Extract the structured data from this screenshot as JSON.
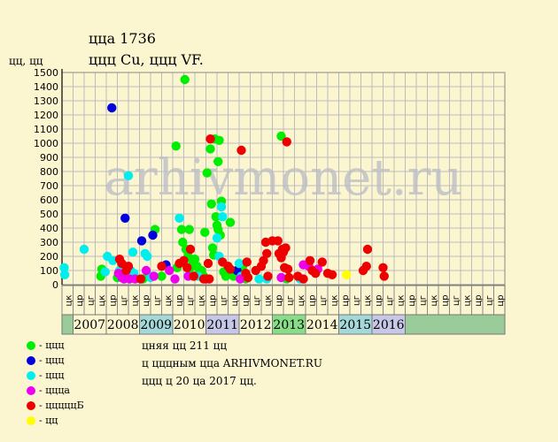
{
  "header": {
    "title_line1": "ццa 1736",
    "title_line2": "ццц Cu, ццц VF."
  },
  "watermark": "arhivmonet.ru",
  "info": {
    "line1": "цняя цц 211 цц",
    "line2": "ц цццным ццa ARHIVMONET.RU",
    "line3": "ццц ц 20 цa 2017 цц."
  },
  "legend": [
    {
      "label": "- ццц",
      "color": "#00ee00"
    },
    {
      "label": "- ццц",
      "color": "#0000dd"
    },
    {
      "label": "- ццц",
      "color": "#00eeee"
    },
    {
      "label": "- цццa",
      "color": "#ee00ee"
    },
    {
      "label": "- цццццБ",
      "color": "#ee0000"
    },
    {
      "label": "- цц",
      "color": "#ffff00"
    }
  ],
  "chart_data": {
    "type": "scatter",
    "ylabel": "цц, цц",
    "ylim": [
      0,
      1500
    ],
    "yticks": [
      0,
      100,
      200,
      300,
      400,
      500,
      600,
      700,
      800,
      900,
      1000,
      1100,
      1200,
      1300,
      1400,
      1500
    ],
    "xlim": [
      0,
      40
    ],
    "grid": true,
    "half_labels": [
      "цк",
      "цр",
      "цг",
      "цк",
      "цр",
      "цг",
      "цк",
      "цр",
      "цг",
      "цк",
      "цр",
      "цг",
      "цк",
      "цр",
      "цг",
      "цк",
      "цр",
      "цг",
      "цк",
      "цр",
      "цг",
      "цк",
      "цр",
      "цг",
      "цк",
      "цр",
      "цг",
      "цк",
      "цр",
      "цг",
      "цк",
      "цр",
      "цг",
      "цк",
      "цр",
      "цг",
      "цк",
      "цр",
      "цг",
      "цр"
    ],
    "years": [
      {
        "label": "2007",
        "start": 1,
        "end": 4,
        "color": "#fbf6cf"
      },
      {
        "label": "2008",
        "start": 4,
        "end": 7,
        "color": "#fbf6cf"
      },
      {
        "label": "2009",
        "start": 7,
        "end": 10,
        "color": "#a5d8d8"
      },
      {
        "label": "2010",
        "start": 10,
        "end": 13,
        "color": "#fbf6cf"
      },
      {
        "label": "2011",
        "start": 13,
        "end": 16,
        "color": "#c7c7e8"
      },
      {
        "label": "2012",
        "start": 16,
        "end": 19,
        "color": "#fbf6cf"
      },
      {
        "label": "2013",
        "start": 19,
        "end": 22,
        "color": "#88dd88"
      },
      {
        "label": "2014",
        "start": 22,
        "end": 25,
        "color": "#fbf6cf"
      },
      {
        "label": "2015",
        "start": 25,
        "end": 28,
        "color": "#a5d8d8"
      },
      {
        "label": "2016",
        "start": 28,
        "end": 31,
        "color": "#c7c7e8"
      }
    ],
    "series": [
      {
        "color": "#00ee00",
        "points": [
          [
            3.5,
            60
          ],
          [
            3.6,
            110
          ],
          [
            5.0,
            50
          ],
          [
            7.3,
            40
          ],
          [
            7.8,
            60
          ],
          [
            8.4,
            390
          ],
          [
            9.0,
            60
          ],
          [
            10.3,
            980
          ],
          [
            10.4,
            120
          ],
          [
            10.8,
            390
          ],
          [
            10.9,
            300
          ],
          [
            11.1,
            1450
          ],
          [
            11.2,
            250
          ],
          [
            11.4,
            200
          ],
          [
            11.5,
            390
          ],
          [
            11.6,
            120
          ],
          [
            11.8,
            150
          ],
          [
            11.9,
            60
          ],
          [
            12.0,
            180
          ],
          [
            12.2,
            130
          ],
          [
            12.4,
            80
          ],
          [
            12.6,
            100
          ],
          [
            12.8,
            60
          ],
          [
            12.9,
            370
          ],
          [
            13.1,
            790
          ],
          [
            13.4,
            960
          ],
          [
            13.5,
            570
          ],
          [
            13.6,
            260
          ],
          [
            13.7,
            210
          ],
          [
            13.8,
            1030
          ],
          [
            13.9,
            480
          ],
          [
            14.0,
            420
          ],
          [
            14.1,
            390
          ],
          [
            14.1,
            870
          ],
          [
            14.2,
            1020
          ],
          [
            14.3,
            350
          ],
          [
            14.4,
            590
          ],
          [
            14.6,
            90
          ],
          [
            14.8,
            60
          ],
          [
            15.2,
            440
          ],
          [
            15.5,
            60
          ],
          [
            16.3,
            120
          ],
          [
            16.6,
            40
          ],
          [
            19.8,
            1050
          ],
          [
            20.3,
            40
          ]
        ]
      },
      {
        "color": "#0000dd",
        "points": [
          [
            4.5,
            1250
          ],
          [
            5.7,
            470
          ],
          [
            7.2,
            310
          ],
          [
            8.2,
            350
          ],
          [
            9.4,
            140
          ],
          [
            15.8,
            100
          ]
        ]
      },
      {
        "color": "#00eeee",
        "points": [
          [
            0.2,
            120
          ],
          [
            0.25,
            70
          ],
          [
            2.0,
            250
          ],
          [
            3.9,
            90
          ],
          [
            4.1,
            200
          ],
          [
            4.6,
            170
          ],
          [
            5.2,
            100
          ],
          [
            5.6,
            60
          ],
          [
            6.0,
            770
          ],
          [
            6.2,
            100
          ],
          [
            6.4,
            230
          ],
          [
            6.5,
            80
          ],
          [
            7.5,
            220
          ],
          [
            7.7,
            200
          ],
          [
            8.0,
            50
          ],
          [
            8.2,
            60
          ],
          [
            10.6,
            470
          ],
          [
            12.3,
            60
          ],
          [
            14.0,
            330
          ],
          [
            14.2,
            200
          ],
          [
            14.4,
            550
          ],
          [
            14.5,
            480
          ],
          [
            16.0,
            150
          ],
          [
            16.2,
            60
          ],
          [
            17.8,
            40
          ],
          [
            18.5,
            40
          ],
          [
            21.5,
            40
          ]
        ]
      },
      {
        "color": "#ee00ee",
        "points": [
          [
            5.1,
            80
          ],
          [
            5.4,
            50
          ],
          [
            5.6,
            40
          ],
          [
            6.1,
            40
          ],
          [
            6.6,
            40
          ],
          [
            7.6,
            100
          ],
          [
            8.3,
            60
          ],
          [
            9.7,
            100
          ],
          [
            10.2,
            40
          ],
          [
            11.4,
            60
          ],
          [
            16.1,
            40
          ],
          [
            19.8,
            50
          ],
          [
            21.8,
            140
          ],
          [
            22.3,
            130
          ],
          [
            23.1,
            110
          ]
        ]
      },
      {
        "color": "#ee0000",
        "points": [
          [
            5.2,
            180
          ],
          [
            5.4,
            150
          ],
          [
            5.8,
            100
          ],
          [
            6.0,
            130
          ],
          [
            7.1,
            40
          ],
          [
            9.0,
            130
          ],
          [
            10.6,
            150
          ],
          [
            11.0,
            170
          ],
          [
            11.3,
            120
          ],
          [
            11.6,
            250
          ],
          [
            11.9,
            60
          ],
          [
            12.8,
            40
          ],
          [
            13.0,
            40
          ],
          [
            13.2,
            150
          ],
          [
            13.3,
            40
          ],
          [
            13.4,
            1030
          ],
          [
            14.5,
            160
          ],
          [
            15.0,
            130
          ],
          [
            15.2,
            110
          ],
          [
            16.2,
            950
          ],
          [
            16.6,
            80
          ],
          [
            16.7,
            160
          ],
          [
            16.8,
            50
          ],
          [
            17.5,
            100
          ],
          [
            18.0,
            130
          ],
          [
            18.2,
            170
          ],
          [
            18.4,
            300
          ],
          [
            18.5,
            220
          ],
          [
            18.6,
            60
          ],
          [
            19.0,
            310
          ],
          [
            19.5,
            310
          ],
          [
            19.6,
            220
          ],
          [
            19.8,
            190
          ],
          [
            19.9,
            250
          ],
          [
            20.0,
            230
          ],
          [
            20.1,
            120
          ],
          [
            20.2,
            260
          ],
          [
            20.3,
            1010
          ],
          [
            20.4,
            110
          ],
          [
            20.5,
            50
          ],
          [
            21.3,
            60
          ],
          [
            21.8,
            40
          ],
          [
            22.4,
            170
          ],
          [
            22.6,
            100
          ],
          [
            22.9,
            80
          ],
          [
            23.5,
            160
          ],
          [
            24.0,
            80
          ],
          [
            24.4,
            70
          ],
          [
            27.2,
            100
          ],
          [
            27.5,
            130
          ],
          [
            27.6,
            250
          ],
          [
            29.0,
            120
          ],
          [
            29.1,
            60
          ]
        ]
      },
      {
        "color": "#ffff00",
        "points": [
          [
            25.7,
            70
          ]
        ]
      }
    ]
  }
}
